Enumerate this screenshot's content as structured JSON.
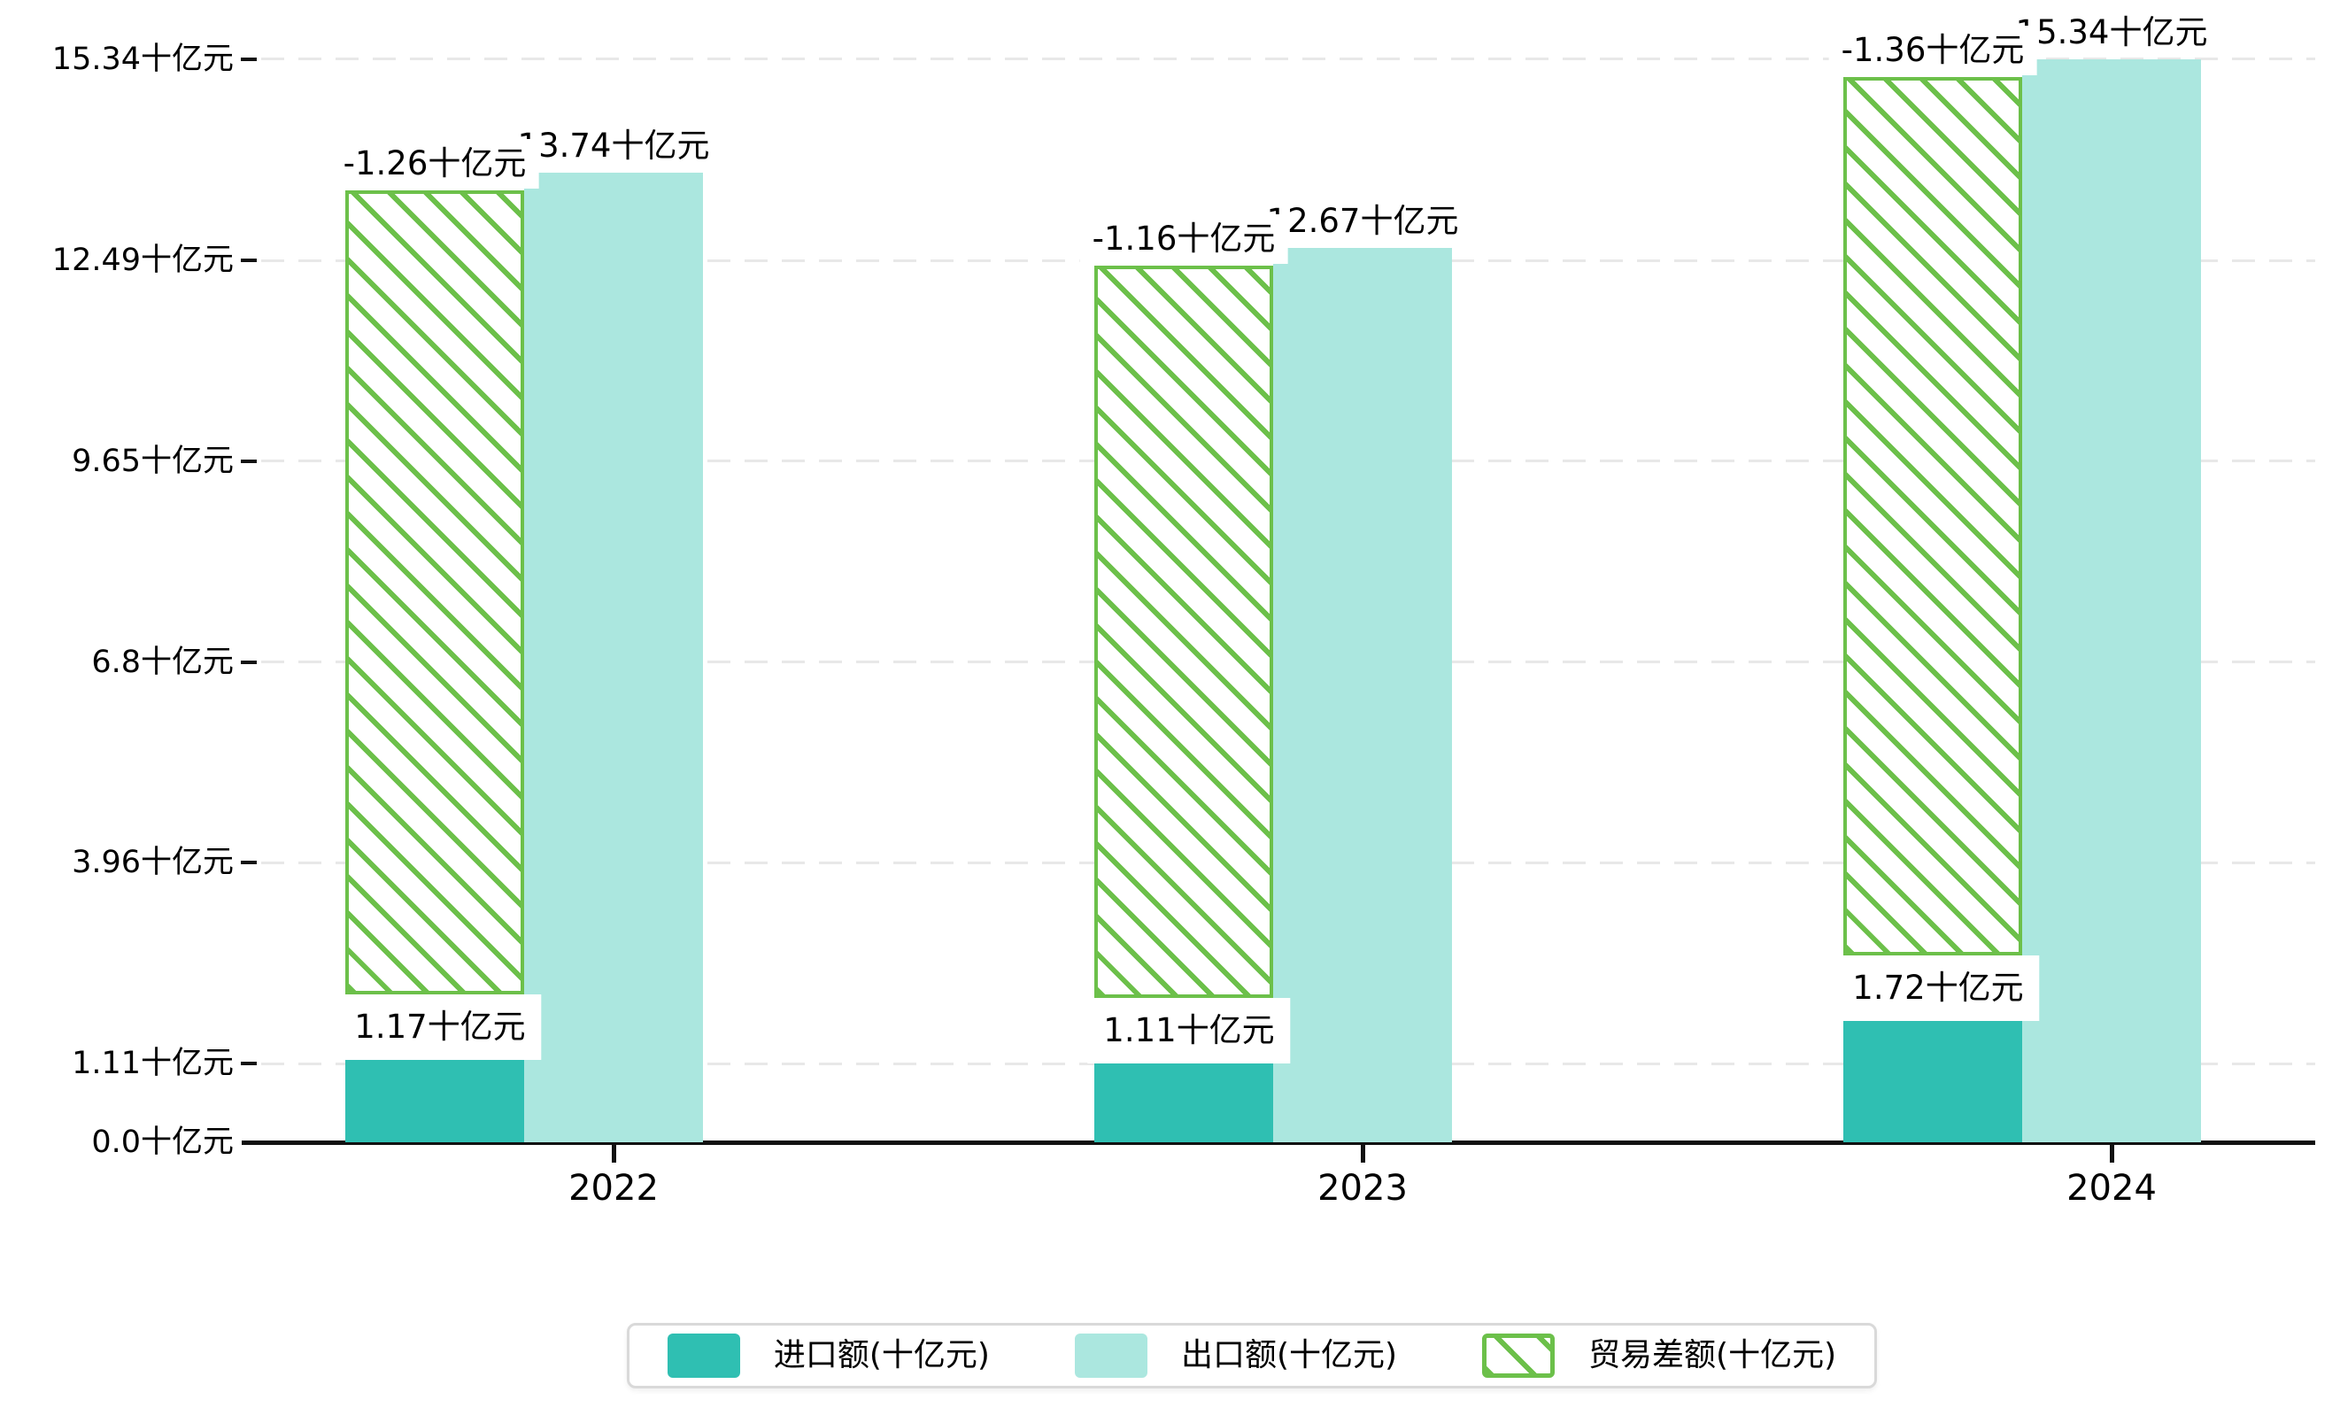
{
  "chart_data": {
    "type": "bar",
    "title": "",
    "categories": [
      "2022",
      "2023",
      "2024"
    ],
    "series": [
      {
        "name": "进口额(十亿元)",
        "values": [
          1.17,
          1.11,
          1.72
        ],
        "labels": [
          "1.17十亿元",
          "1.11十亿元",
          "1.72十亿元"
        ],
        "color": "#2fbfb2",
        "style": "solid"
      },
      {
        "name": "出口额(十亿元)",
        "values": [
          13.74,
          12.67,
          15.34
        ],
        "labels": [
          "13.74十亿元",
          "12.67十亿元",
          "15.34十亿元"
        ],
        "color": "#abe7df",
        "style": "solid"
      },
      {
        "name": "贸易差额(十亿元)",
        "values": [
          -1.26,
          -1.16,
          -1.36
        ],
        "labels": [
          "-1.26十亿元",
          "-1.16十亿元",
          "-1.36十亿元"
        ],
        "color": "#6cc04a",
        "style": "hatched"
      }
    ],
    "unit": "十亿元",
    "yticks": [
      0.0,
      1.11,
      3.96,
      6.8,
      9.65,
      12.49,
      15.34
    ],
    "ytick_labels": [
      "0.0十亿元",
      "1.11十亿元",
      "3.96十亿元",
      "6.8十亿元",
      "9.65十亿元",
      "12.49十亿元",
      "15.34十亿元"
    ],
    "ylim": [
      0,
      15.34
    ],
    "grid": "dashed-horizontal",
    "legend_position": "bottom"
  },
  "colors": {
    "import_bar": "#2fbfb2",
    "export_bar": "#abe7df",
    "balance_hatch": "#6cc04a",
    "axis": "#111111",
    "gridline": "#e8e8e8",
    "label_text": "#000000",
    "legend_border": "#d9d9d9",
    "background": "#ffffff"
  }
}
